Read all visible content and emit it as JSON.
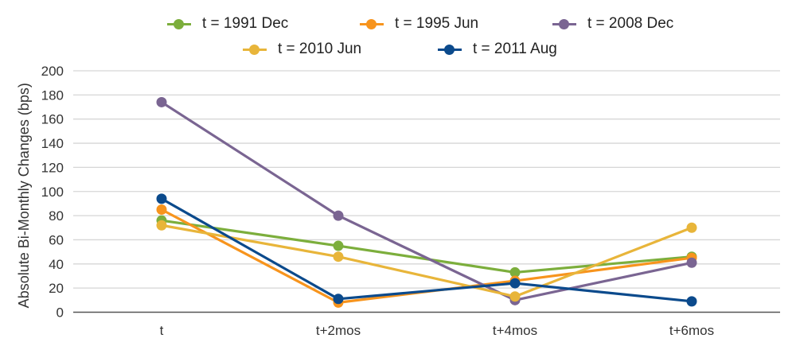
{
  "chart_data": {
    "type": "line",
    "title": "",
    "xlabel": "",
    "ylabel": "Absolute Bi-Monthly Changes (bps)",
    "categories": [
      "t",
      "t+2mos",
      "t+4mos",
      "t+6mos"
    ],
    "ylim": [
      0,
      200
    ],
    "yticks": [
      0,
      20,
      40,
      60,
      80,
      100,
      120,
      140,
      160,
      180,
      200
    ],
    "grid": true,
    "legend_position": "top-center",
    "series": [
      {
        "name": "t = 1991 Dec",
        "color": "#7cae3c",
        "values": [
          76,
          55,
          33,
          46
        ]
      },
      {
        "name": "t = 1995 Jun",
        "color": "#f7941d",
        "values": [
          85,
          8,
          26,
          45
        ]
      },
      {
        "name": "t = 2008 Dec",
        "color": "#7a6592",
        "values": [
          174,
          80,
          10,
          41
        ]
      },
      {
        "name": "t = 2010 Jun",
        "color": "#e8b53a",
        "values": [
          72,
          46,
          13,
          70
        ]
      },
      {
        "name": "t = 2011 Aug",
        "color": "#0b4a8c",
        "values": [
          94,
          11,
          24,
          9
        ]
      }
    ]
  }
}
